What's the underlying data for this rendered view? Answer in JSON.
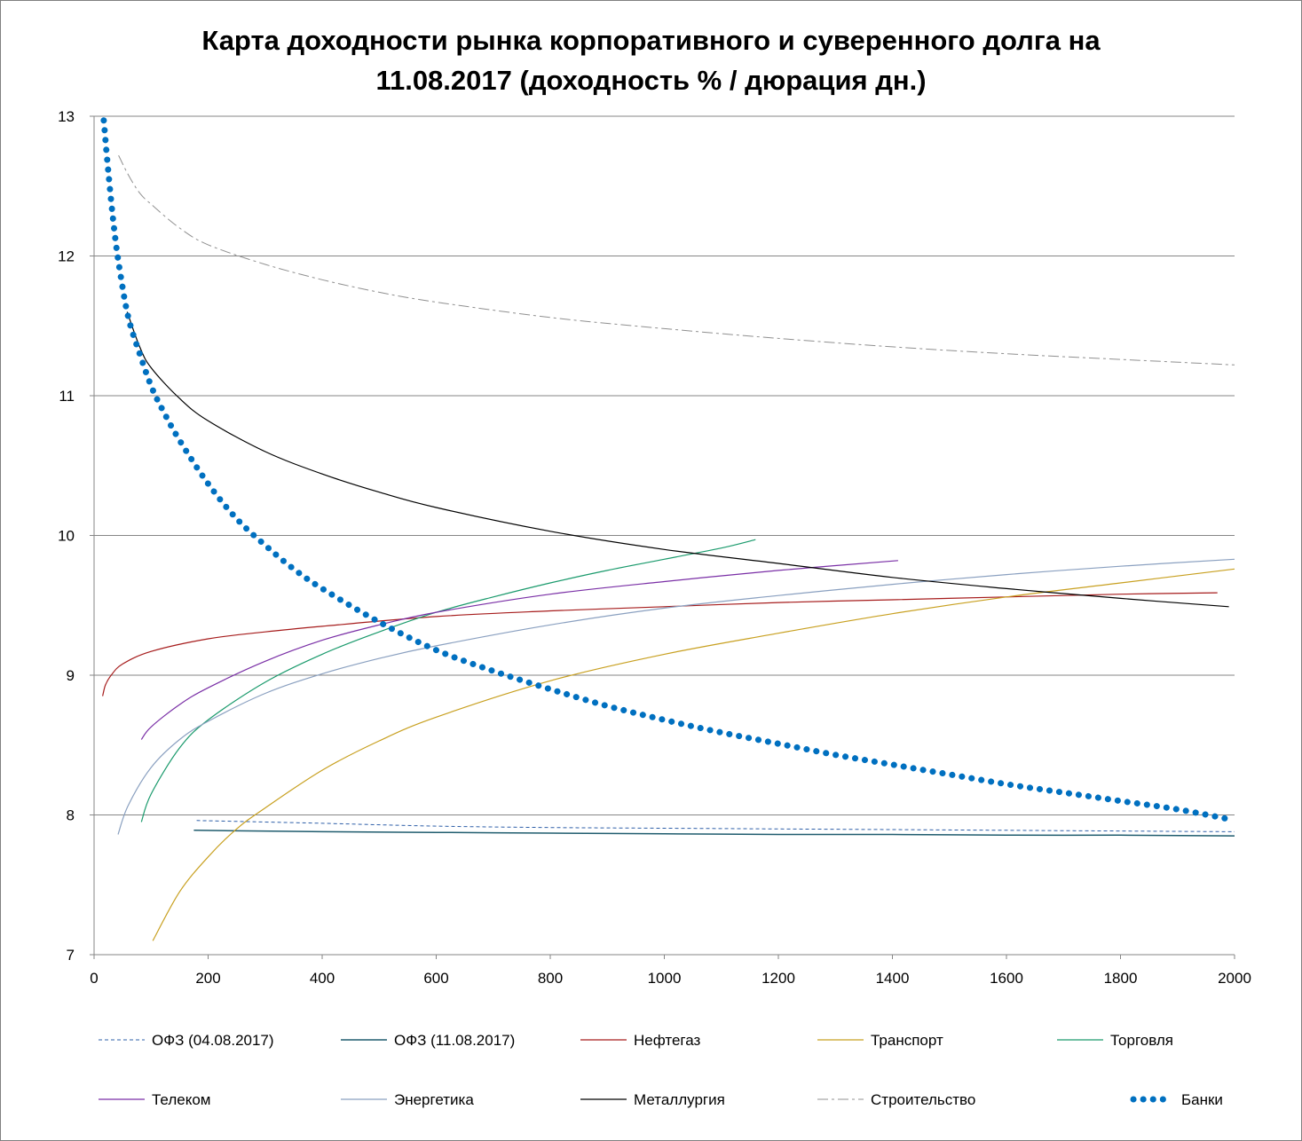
{
  "chart_data": {
    "type": "line",
    "title_line1": "Карта доходности рынка корпоративного и суверенного долга на",
    "title_line2": "11.08.2017 (доходность % / дюрация дн.)",
    "xlim": [
      0,
      2000
    ],
    "ylim": [
      7,
      13
    ],
    "x_ticks": [
      0,
      200,
      400,
      600,
      800,
      1000,
      1200,
      1400,
      1600,
      1800,
      2000
    ],
    "y_ticks": [
      7,
      8,
      9,
      10,
      11,
      12,
      13
    ],
    "grid": "horizontal",
    "legend_position": "bottom",
    "series": [
      {
        "name": "ОФЗ (04.08.2017)",
        "color": "#2E5FA8",
        "dash": "dashed",
        "width": 1,
        "points": [
          [
            180,
            7.96
          ],
          [
            400,
            7.94
          ],
          [
            600,
            7.92
          ],
          [
            800,
            7.91
          ],
          [
            1000,
            7.905
          ],
          [
            1200,
            7.9
          ],
          [
            1400,
            7.895
          ],
          [
            1600,
            7.89
          ],
          [
            1800,
            7.885
          ],
          [
            2000,
            7.88
          ]
        ]
      },
      {
        "name": "ОФЗ (11.08.2017)",
        "color": "#1F5C6E",
        "dash": "solid",
        "width": 1.5,
        "points": [
          [
            175,
            7.89
          ],
          [
            400,
            7.88
          ],
          [
            600,
            7.875
          ],
          [
            800,
            7.87
          ],
          [
            1000,
            7.865
          ],
          [
            1200,
            7.86
          ],
          [
            1400,
            7.86
          ],
          [
            1600,
            7.855
          ],
          [
            1800,
            7.855
          ],
          [
            2000,
            7.85
          ]
        ]
      },
      {
        "name": "Нефтегаз",
        "color": "#A61C1C",
        "dash": "solid",
        "width": 1.2,
        "points": [
          [
            15,
            8.85
          ],
          [
            20,
            8.93
          ],
          [
            30,
            9.0
          ],
          [
            50,
            9.08
          ],
          [
            100,
            9.17
          ],
          [
            200,
            9.26
          ],
          [
            300,
            9.31
          ],
          [
            400,
            9.35
          ],
          [
            600,
            9.42
          ],
          [
            800,
            9.46
          ],
          [
            1000,
            9.49
          ],
          [
            1200,
            9.52
          ],
          [
            1400,
            9.54
          ],
          [
            1600,
            9.56
          ],
          [
            1800,
            9.58
          ],
          [
            1970,
            9.59
          ]
        ]
      },
      {
        "name": "Транспорт",
        "color": "#C8A020",
        "dash": "solid",
        "width": 1.2,
        "points": [
          [
            103,
            7.1
          ],
          [
            150,
            7.45
          ],
          [
            200,
            7.7
          ],
          [
            250,
            7.9
          ],
          [
            300,
            8.05
          ],
          [
            400,
            8.32
          ],
          [
            500,
            8.53
          ],
          [
            600,
            8.7
          ],
          [
            800,
            8.96
          ],
          [
            1000,
            9.15
          ],
          [
            1200,
            9.3
          ],
          [
            1400,
            9.44
          ],
          [
            1600,
            9.56
          ],
          [
            1800,
            9.66
          ],
          [
            2000,
            9.76
          ]
        ]
      },
      {
        "name": "Торговля",
        "color": "#1A9A6C",
        "dash": "solid",
        "width": 1.2,
        "points": [
          [
            83,
            7.95
          ],
          [
            100,
            8.15
          ],
          [
            150,
            8.48
          ],
          [
            200,
            8.68
          ],
          [
            300,
            8.95
          ],
          [
            400,
            9.15
          ],
          [
            500,
            9.31
          ],
          [
            600,
            9.45
          ],
          [
            700,
            9.56
          ],
          [
            800,
            9.66
          ],
          [
            900,
            9.75
          ],
          [
            1000,
            9.83
          ],
          [
            1100,
            9.91
          ],
          [
            1160,
            9.97
          ]
        ]
      },
      {
        "name": "Телеком",
        "color": "#7A2FA6",
        "dash": "solid",
        "width": 1.2,
        "points": [
          [
            83,
            8.54
          ],
          [
            100,
            8.63
          ],
          [
            150,
            8.79
          ],
          [
            200,
            8.91
          ],
          [
            300,
            9.1
          ],
          [
            400,
            9.25
          ],
          [
            500,
            9.36
          ],
          [
            600,
            9.45
          ],
          [
            800,
            9.58
          ],
          [
            1000,
            9.67
          ],
          [
            1200,
            9.75
          ],
          [
            1410,
            9.82
          ]
        ]
      },
      {
        "name": "Энергетика",
        "color": "#8AA0C0",
        "dash": "solid",
        "width": 1.2,
        "points": [
          [
            42,
            7.86
          ],
          [
            60,
            8.07
          ],
          [
            100,
            8.34
          ],
          [
            150,
            8.54
          ],
          [
            200,
            8.67
          ],
          [
            300,
            8.87
          ],
          [
            400,
            9.01
          ],
          [
            500,
            9.12
          ],
          [
            600,
            9.21
          ],
          [
            800,
            9.36
          ],
          [
            1000,
            9.48
          ],
          [
            1200,
            9.57
          ],
          [
            1400,
            9.65
          ],
          [
            1600,
            9.72
          ],
          [
            1800,
            9.78
          ],
          [
            2000,
            9.83
          ]
        ]
      },
      {
        "name": "Металлургия",
        "color": "#000000",
        "dash": "solid",
        "width": 1.2,
        "points": [
          [
            58,
            11.6
          ],
          [
            80,
            11.35
          ],
          [
            100,
            11.2
          ],
          [
            150,
            10.98
          ],
          [
            200,
            10.82
          ],
          [
            300,
            10.6
          ],
          [
            400,
            10.44
          ],
          [
            500,
            10.31
          ],
          [
            600,
            10.2
          ],
          [
            800,
            10.03
          ],
          [
            1000,
            9.9
          ],
          [
            1200,
            9.8
          ],
          [
            1400,
            9.7
          ],
          [
            1600,
            9.62
          ],
          [
            1800,
            9.55
          ],
          [
            1990,
            9.49
          ]
        ]
      },
      {
        "name": "Строительство",
        "color": "#909090",
        "dash": "dashdot",
        "width": 1,
        "points": [
          [
            43,
            12.72
          ],
          [
            60,
            12.58
          ],
          [
            80,
            12.45
          ],
          [
            100,
            12.37
          ],
          [
            150,
            12.2
          ],
          [
            200,
            12.08
          ],
          [
            300,
            11.94
          ],
          [
            400,
            11.83
          ],
          [
            500,
            11.74
          ],
          [
            600,
            11.67
          ],
          [
            800,
            11.56
          ],
          [
            1000,
            11.48
          ],
          [
            1200,
            11.41
          ],
          [
            1400,
            11.35
          ],
          [
            1600,
            11.3
          ],
          [
            1800,
            11.26
          ],
          [
            2000,
            11.22
          ]
        ]
      },
      {
        "name": "Банки",
        "color": "#0070C0",
        "dash": "dotted",
        "width": 7,
        "points": [
          [
            17,
            12.97
          ],
          [
            25,
            12.6
          ],
          [
            35,
            12.2
          ],
          [
            45,
            11.9
          ],
          [
            60,
            11.56
          ],
          [
            80,
            11.3
          ],
          [
            100,
            11.07
          ],
          [
            120,
            10.9
          ],
          [
            150,
            10.68
          ],
          [
            200,
            10.37
          ],
          [
            250,
            10.12
          ],
          [
            300,
            9.93
          ],
          [
            350,
            9.76
          ],
          [
            400,
            9.62
          ],
          [
            500,
            9.38
          ],
          [
            600,
            9.18
          ],
          [
            700,
            9.03
          ],
          [
            800,
            8.9
          ],
          [
            900,
            8.78
          ],
          [
            1000,
            8.68
          ],
          [
            1100,
            8.59
          ],
          [
            1200,
            8.51
          ],
          [
            1300,
            8.43
          ],
          [
            1400,
            8.36
          ],
          [
            1500,
            8.29
          ],
          [
            1600,
            8.22
          ],
          [
            1700,
            8.16
          ],
          [
            1800,
            8.1
          ],
          [
            1900,
            8.04
          ],
          [
            1990,
            7.97
          ]
        ]
      }
    ]
  }
}
